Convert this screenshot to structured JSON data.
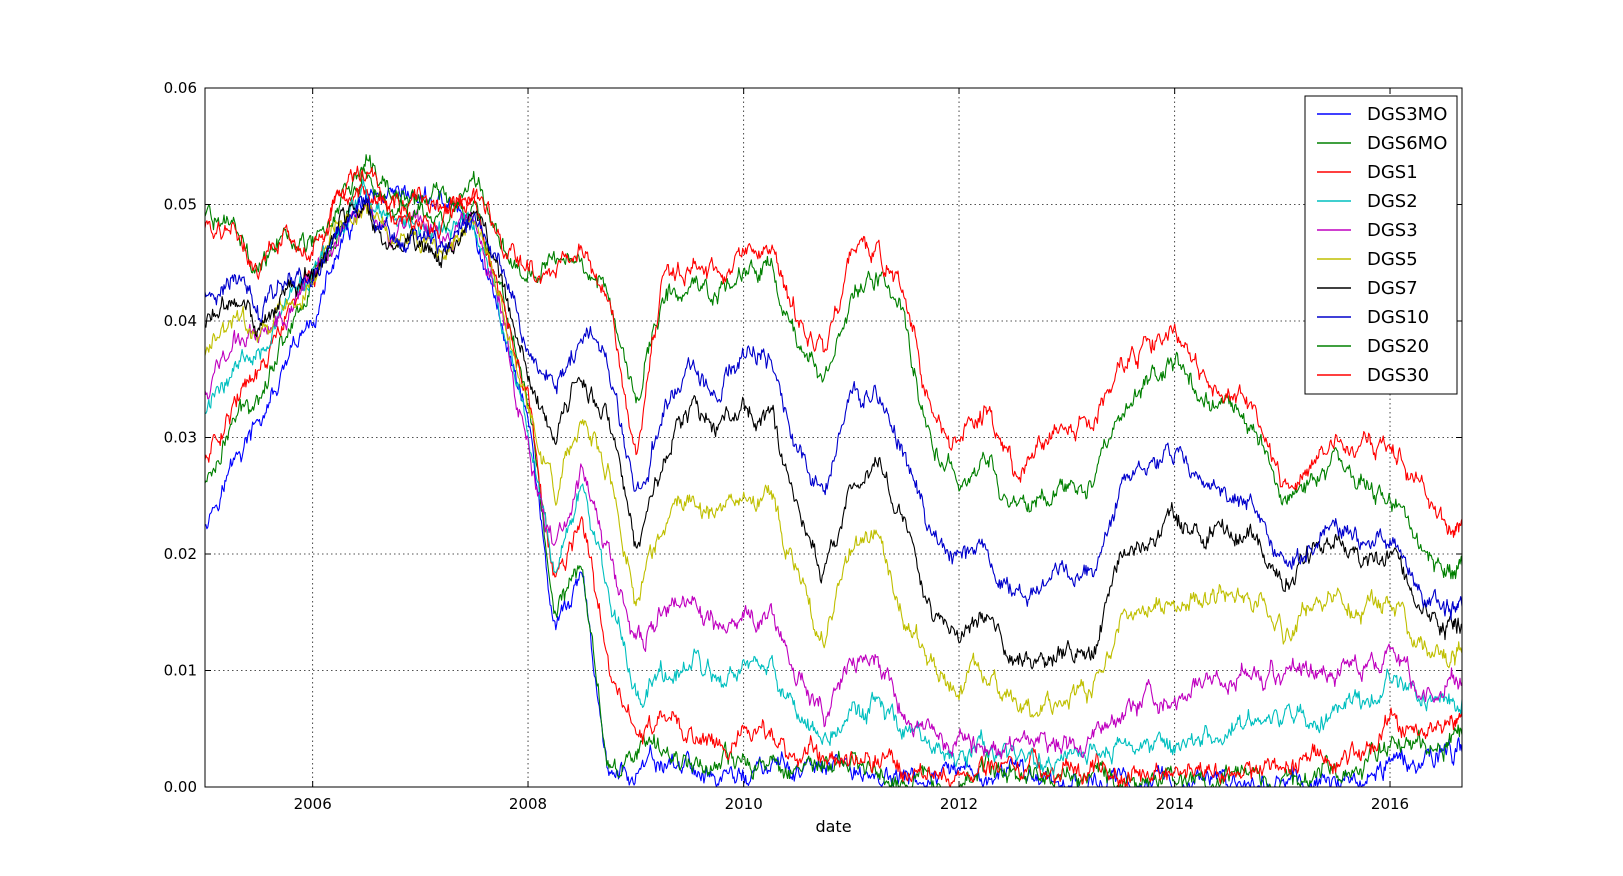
{
  "chart_data": {
    "type": "line",
    "xlabel": "date",
    "ylabel": "",
    "title": "",
    "xlim": [
      "2005-01-01",
      "2016-09-01"
    ],
    "ylim": [
      0.0,
      0.06
    ],
    "x_ticks": [
      "2006",
      "2008",
      "2010",
      "2012",
      "2014",
      "2016"
    ],
    "y_ticks": [
      "0.00",
      "0.01",
      "0.02",
      "0.03",
      "0.04",
      "0.05",
      "0.06"
    ],
    "grid": true,
    "legend_position": "top-right",
    "x": [
      "2005-01-01",
      "2005-04-01",
      "2005-07-01",
      "2005-10-01",
      "2006-01-01",
      "2006-04-01",
      "2006-07-01",
      "2006-10-01",
      "2007-01-01",
      "2007-04-01",
      "2007-07-01",
      "2007-10-01",
      "2008-01-01",
      "2008-04-01",
      "2008-07-01",
      "2008-10-01",
      "2009-01-01",
      "2009-04-01",
      "2009-07-01",
      "2009-10-01",
      "2010-01-01",
      "2010-04-01",
      "2010-07-01",
      "2010-10-01",
      "2011-01-01",
      "2011-04-01",
      "2011-07-01",
      "2011-10-01",
      "2012-01-01",
      "2012-04-01",
      "2012-07-01",
      "2012-10-01",
      "2013-01-01",
      "2013-04-01",
      "2013-07-01",
      "2013-10-01",
      "2014-01-01",
      "2014-04-01",
      "2014-07-01",
      "2014-10-01",
      "2015-01-01",
      "2015-04-01",
      "2015-07-01",
      "2015-10-01",
      "2016-01-01",
      "2016-04-01",
      "2016-07-01",
      "2016-09-01"
    ],
    "series": [
      {
        "name": "DGS3MO",
        "color": "#0000ff",
        "values": [
          0.023,
          0.0275,
          0.031,
          0.0355,
          0.04,
          0.046,
          0.05,
          0.0495,
          0.0505,
          0.05,
          0.048,
          0.04,
          0.032,
          0.013,
          0.018,
          0.001,
          0.001,
          0.002,
          0.0018,
          0.0008,
          0.001,
          0.0015,
          0.0015,
          0.0013,
          0.0015,
          0.001,
          0.0005,
          0.0005,
          0.0005,
          0.0008,
          0.001,
          0.001,
          0.0005,
          0.0005,
          0.0003,
          0.0005,
          0.0005,
          0.0003,
          0.0003,
          0.0003,
          0.0003,
          0.0002,
          0.0003,
          0.0003,
          0.0025,
          0.0025,
          0.003,
          0.003
        ]
      },
      {
        "name": "DGS6MO",
        "color": "#008000",
        "values": [
          0.026,
          0.031,
          0.034,
          0.039,
          0.0435,
          0.048,
          0.0525,
          0.0505,
          0.0505,
          0.0505,
          0.05,
          0.043,
          0.033,
          0.015,
          0.019,
          0.0015,
          0.003,
          0.003,
          0.0025,
          0.0018,
          0.0018,
          0.002,
          0.002,
          0.0018,
          0.0018,
          0.0013,
          0.0008,
          0.0005,
          0.0008,
          0.0013,
          0.0013,
          0.0013,
          0.001,
          0.001,
          0.0008,
          0.0008,
          0.0008,
          0.0005,
          0.0005,
          0.0005,
          0.001,
          0.0013,
          0.0015,
          0.0015,
          0.0045,
          0.004,
          0.004,
          0.0045
        ]
      },
      {
        "name": "DGS1",
        "color": "#ff0000",
        "values": [
          0.028,
          0.033,
          0.035,
          0.04,
          0.044,
          0.049,
          0.052,
          0.05,
          0.05,
          0.0495,
          0.05,
          0.0415,
          0.033,
          0.017,
          0.023,
          0.01,
          0.0045,
          0.0055,
          0.0045,
          0.004,
          0.0045,
          0.004,
          0.003,
          0.0028,
          0.003,
          0.0025,
          0.0018,
          0.001,
          0.0012,
          0.0018,
          0.0018,
          0.0016,
          0.0015,
          0.0013,
          0.0013,
          0.0013,
          0.0012,
          0.0012,
          0.0011,
          0.0012,
          0.002,
          0.0025,
          0.0028,
          0.003,
          0.006,
          0.0055,
          0.005,
          0.006
        ]
      },
      {
        "name": "DGS2",
        "color": "#00bfbf",
        "values": [
          0.032,
          0.036,
          0.038,
          0.041,
          0.044,
          0.048,
          0.051,
          0.0485,
          0.048,
          0.0475,
          0.049,
          0.04,
          0.031,
          0.018,
          0.026,
          0.016,
          0.0085,
          0.0095,
          0.0105,
          0.009,
          0.0095,
          0.01,
          0.0065,
          0.0045,
          0.006,
          0.007,
          0.0045,
          0.0025,
          0.0025,
          0.003,
          0.0025,
          0.0025,
          0.0025,
          0.0028,
          0.0035,
          0.0035,
          0.0035,
          0.004,
          0.0048,
          0.0055,
          0.0055,
          0.006,
          0.0065,
          0.007,
          0.01,
          0.0075,
          0.0068,
          0.0075
        ]
      },
      {
        "name": "DGS3",
        "color": "#bf00bf",
        "values": [
          0.034,
          0.038,
          0.039,
          0.041,
          0.0438,
          0.048,
          0.0505,
          0.0478,
          0.0475,
          0.047,
          0.049,
          0.041,
          0.029,
          0.02,
          0.027,
          0.02,
          0.012,
          0.015,
          0.0155,
          0.0135,
          0.0145,
          0.015,
          0.01,
          0.006,
          0.01,
          0.011,
          0.006,
          0.004,
          0.0035,
          0.0045,
          0.0035,
          0.0035,
          0.0035,
          0.004,
          0.006,
          0.008,
          0.008,
          0.0085,
          0.0095,
          0.01,
          0.0095,
          0.01,
          0.0105,
          0.0105,
          0.012,
          0.009,
          0.0085,
          0.009
        ]
      },
      {
        "name": "DGS5",
        "color": "#bfbf00",
        "values": [
          0.037,
          0.04,
          0.039,
          0.041,
          0.0435,
          0.048,
          0.05,
          0.0465,
          0.0465,
          0.046,
          0.049,
          0.042,
          0.032,
          0.025,
          0.032,
          0.027,
          0.016,
          0.022,
          0.025,
          0.023,
          0.0245,
          0.025,
          0.018,
          0.012,
          0.02,
          0.022,
          0.015,
          0.01,
          0.0085,
          0.01,
          0.007,
          0.0065,
          0.0075,
          0.008,
          0.014,
          0.015,
          0.0165,
          0.016,
          0.0165,
          0.016,
          0.013,
          0.015,
          0.016,
          0.015,
          0.016,
          0.012,
          0.011,
          0.0115
        ]
      },
      {
        "name": "DGS7",
        "color": "#000000",
        "values": [
          0.0395,
          0.0415,
          0.04,
          0.042,
          0.0435,
          0.0478,
          0.05,
          0.0462,
          0.0462,
          0.0458,
          0.049,
          0.043,
          0.035,
          0.03,
          0.035,
          0.032,
          0.02,
          0.028,
          0.032,
          0.031,
          0.032,
          0.032,
          0.024,
          0.018,
          0.026,
          0.028,
          0.022,
          0.015,
          0.014,
          0.0145,
          0.011,
          0.0105,
          0.012,
          0.0115,
          0.02,
          0.021,
          0.023,
          0.022,
          0.0215,
          0.021,
          0.017,
          0.0195,
          0.021,
          0.0195,
          0.02,
          0.0155,
          0.0135,
          0.014
        ]
      },
      {
        "name": "DGS10",
        "color": "#0000cc",
        "values": [
          0.0425,
          0.0445,
          0.041,
          0.044,
          0.044,
          0.0478,
          0.0505,
          0.0465,
          0.0465,
          0.0462,
          0.0495,
          0.0445,
          0.038,
          0.035,
          0.039,
          0.037,
          0.024,
          0.032,
          0.036,
          0.034,
          0.037,
          0.037,
          0.029,
          0.025,
          0.033,
          0.034,
          0.029,
          0.021,
          0.0195,
          0.02,
          0.016,
          0.017,
          0.0185,
          0.018,
          0.0255,
          0.0265,
          0.029,
          0.027,
          0.0255,
          0.024,
          0.019,
          0.02,
          0.023,
          0.021,
          0.022,
          0.0175,
          0.015,
          0.0155
        ]
      },
      {
        "name": "DGS20",
        "color": "#008000",
        "values": [
          0.049,
          0.048,
          0.044,
          0.048,
          0.046,
          0.051,
          0.053,
          0.0495,
          0.049,
          0.0495,
          0.052,
          0.047,
          0.044,
          0.045,
          0.046,
          0.042,
          0.033,
          0.042,
          0.043,
          0.042,
          0.044,
          0.045,
          0.038,
          0.035,
          0.042,
          0.044,
          0.04,
          0.029,
          0.0265,
          0.028,
          0.024,
          0.0245,
          0.026,
          0.026,
          0.033,
          0.0345,
          0.0365,
          0.034,
          0.0325,
          0.031,
          0.024,
          0.025,
          0.028,
          0.026,
          0.025,
          0.021,
          0.018,
          0.019
        ]
      },
      {
        "name": "DGS30",
        "color": "#ff0000",
        "values": [
          0.048,
          0.0475,
          0.044,
          0.047,
          0.0455,
          0.051,
          0.0525,
          0.049,
          0.0485,
          0.049,
          0.051,
          0.047,
          0.044,
          0.044,
          0.046,
          0.042,
          0.028,
          0.044,
          0.044,
          0.043,
          0.046,
          0.047,
          0.04,
          0.038,
          0.045,
          0.046,
          0.042,
          0.031,
          0.03,
          0.032,
          0.027,
          0.0285,
          0.0305,
          0.031,
          0.036,
          0.0375,
          0.0395,
          0.036,
          0.0345,
          0.032,
          0.026,
          0.027,
          0.03,
          0.029,
          0.0295,
          0.026,
          0.0225,
          0.023
        ]
      }
    ]
  }
}
